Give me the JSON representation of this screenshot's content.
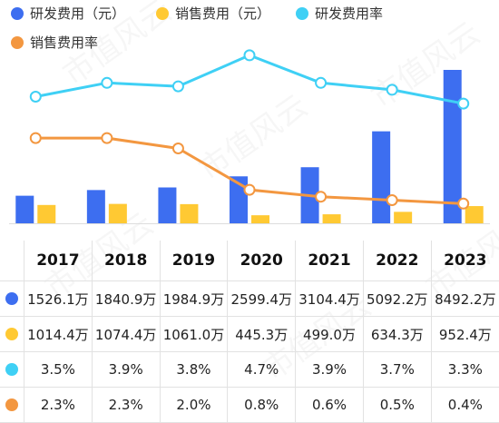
{
  "colors": {
    "rd_expense": "#3d6ef0",
    "sales_expense": "#ffc933",
    "rd_rate": "#3fd0f5",
    "sales_rate": "#f39740"
  },
  "watermark": "市值风云",
  "legend": [
    {
      "label": "研发费用（元）",
      "color": "#3d6ef0"
    },
    {
      "label": "销售费用（元）",
      "color": "#ffc933"
    },
    {
      "label": "研发费用率",
      "color": "#3fd0f5"
    },
    {
      "label": "销售费用率",
      "color": "#f39740"
    }
  ],
  "chart_data": {
    "type": "bar",
    "categories": [
      "2017",
      "2018",
      "2019",
      "2020",
      "2021",
      "2022",
      "2023"
    ],
    "series": [
      {
        "name": "研发费用（元）",
        "kind": "bar",
        "unit": "万",
        "values": [
          1526.1,
          1840.9,
          1984.9,
          2599.4,
          3104.4,
          5092.2,
          8492.2
        ]
      },
      {
        "name": "销售费用（元）",
        "kind": "bar",
        "unit": "万",
        "values": [
          1014.4,
          1074.4,
          1061.0,
          445.3,
          499.0,
          634.3,
          952.4
        ]
      },
      {
        "name": "研发费用率",
        "kind": "line",
        "unit": "%",
        "values": [
          3.5,
          3.9,
          3.8,
          4.7,
          3.9,
          3.7,
          3.3
        ]
      },
      {
        "name": "销售费用率",
        "kind": "line",
        "unit": "%",
        "values": [
          2.3,
          2.3,
          2.0,
          0.8,
          0.6,
          0.5,
          0.4
        ]
      }
    ],
    "table": {
      "rows": [
        [
          "1526.1万",
          "1840.9万",
          "1984.9万",
          "2599.4万",
          "3104.4万",
          "5092.2万",
          "8492.2万"
        ],
        [
          "1014.4万",
          "1074.4万",
          "1061.0万",
          "445.3万",
          "499.0万",
          "634.3万",
          "952.4万"
        ],
        [
          "3.5%",
          "3.9%",
          "3.8%",
          "4.7%",
          "3.9%",
          "3.7%",
          "3.3%"
        ],
        [
          "2.3%",
          "2.3%",
          "2.0%",
          "0.8%",
          "0.6%",
          "0.5%",
          "0.4%"
        ]
      ]
    },
    "grid": false,
    "legend_position": "top-left"
  }
}
